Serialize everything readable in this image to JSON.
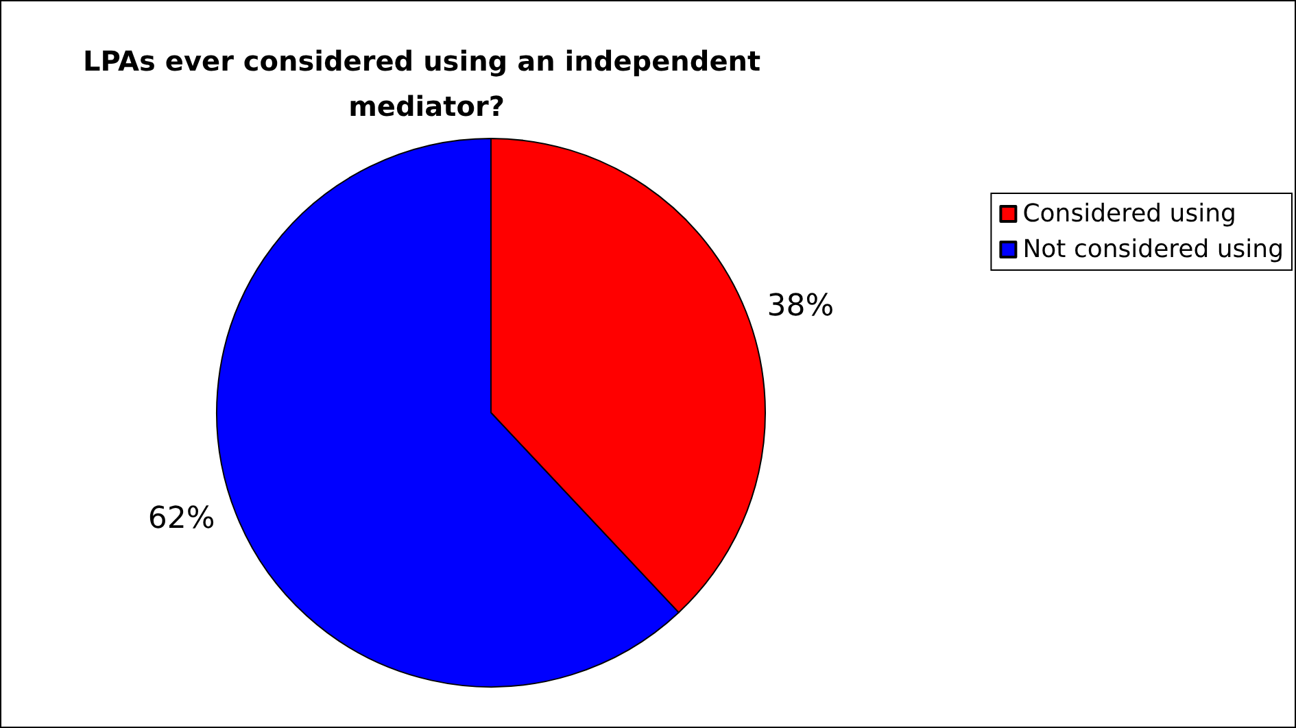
{
  "chart_data": {
    "type": "pie",
    "title": "LPAs ever considered using an independent mediator?",
    "categories": [
      "Considered using",
      "Not considered using"
    ],
    "values": [
      38,
      62
    ],
    "colors": [
      "#ff0000",
      "#0000ff"
    ],
    "value_labels": [
      "38%",
      "62%"
    ],
    "legend": "right"
  }
}
